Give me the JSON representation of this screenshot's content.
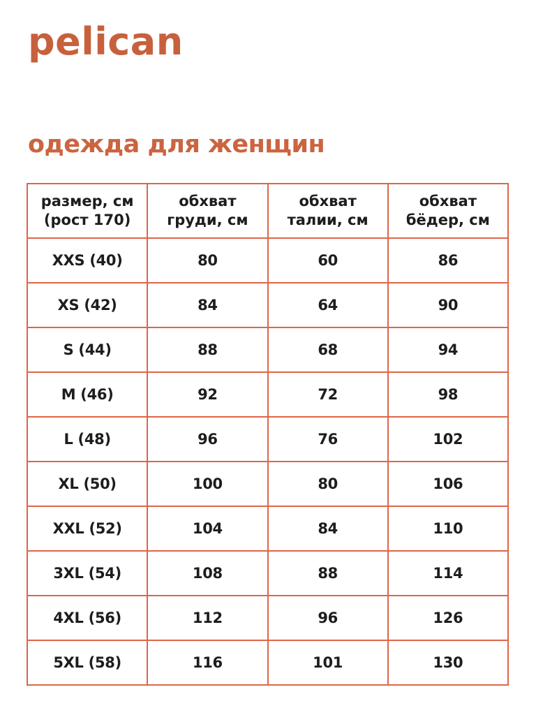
{
  "brand": {
    "logo_text": "pelican"
  },
  "heading": {
    "title": "одежда для женщин"
  },
  "colors": {
    "brand_orange": "#C7603C",
    "heading_orange": "#CB6440",
    "table_border": "#DD6648",
    "table_text": "#1D1D1D",
    "background": "#FFFFFF"
  },
  "size_table": {
    "column_headers": [
      "размер, см\n(рост 170)",
      "обхват\nгруди, см",
      "обхват\nталии, см",
      "обхват\nбёдер, см"
    ],
    "rows": [
      [
        "XXS (40)",
        "80",
        "60",
        "86"
      ],
      [
        "XS (42)",
        "84",
        "64",
        "90"
      ],
      [
        "S (44)",
        "88",
        "68",
        "94"
      ],
      [
        "M (46)",
        "92",
        "72",
        "98"
      ],
      [
        "L (48)",
        "96",
        "76",
        "102"
      ],
      [
        "XL (50)",
        "100",
        "80",
        "106"
      ],
      [
        "XXL (52)",
        "104",
        "84",
        "110"
      ],
      [
        "3XL (54)",
        "108",
        "88",
        "114"
      ],
      [
        "4XL (56)",
        "112",
        "96",
        "126"
      ],
      [
        "5XL (58)",
        "116",
        "101",
        "130"
      ]
    ]
  }
}
